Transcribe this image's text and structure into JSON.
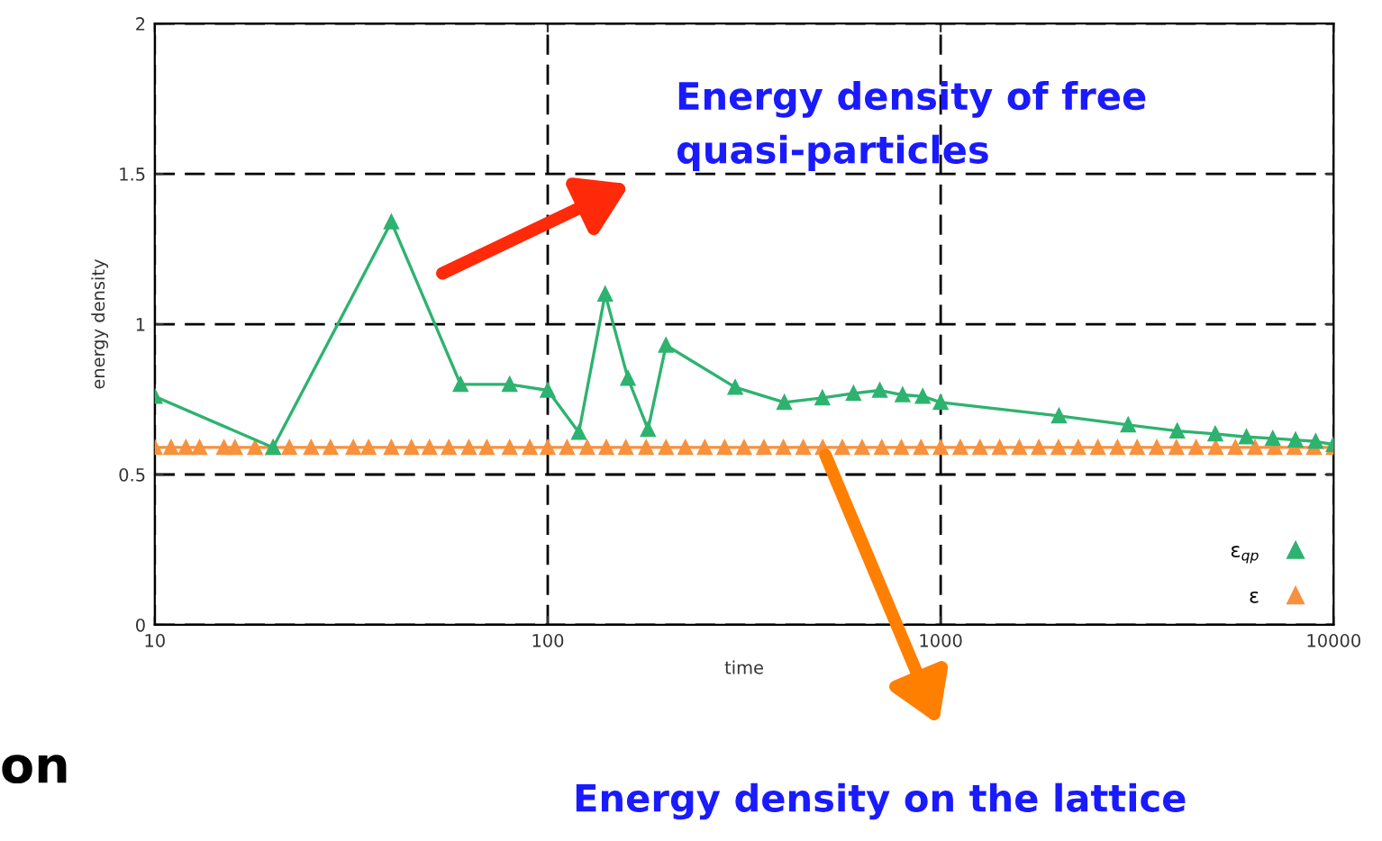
{
  "chart_data": {
    "type": "line",
    "xlabel": "time",
    "ylabel": "energy density",
    "log": "x",
    "grid": true,
    "legend": "bottom right",
    "marker": "triangle",
    "line_style": "solid",
    "xlim": [
      10,
      10000
    ],
    "xticks": [
      10,
      100,
      1000,
      10000
    ],
    "ylim": [
      0,
      2
    ],
    "yticks": [
      0,
      0.5,
      1,
      1.5,
      2
    ],
    "series": [
      {
        "name": "ε$_{qp}$",
        "color": "#2db36f",
        "x": [
          10,
          20,
          40,
          60,
          80,
          100,
          120,
          140,
          160,
          180,
          200,
          300,
          400,
          500,
          600,
          700,
          800,
          900,
          1000,
          2000,
          3000,
          4000,
          5000,
          6000,
          7000,
          8000,
          9000,
          10000
        ],
        "values": [
          0.76,
          0.59,
          1.34,
          0.8,
          0.8,
          0.78,
          0.64,
          1.1,
          0.82,
          0.65,
          0.93,
          0.79,
          0.74,
          0.755,
          0.77,
          0.78,
          0.765,
          0.76,
          0.74,
          0.695,
          0.665,
          0.645,
          0.635,
          0.625,
          0.62,
          0.615,
          0.61,
          0.6
        ]
      },
      {
        "name": "ε",
        "color": "#f7913d",
        "x": [
          10,
          11,
          12,
          13,
          15,
          16,
          18,
          20,
          22,
          25,
          28,
          32,
          35,
          40,
          45,
          50,
          56,
          63,
          70,
          80,
          90,
          100,
          112,
          126,
          141,
          158,
          178,
          200,
          224,
          251,
          282,
          316,
          355,
          398,
          447,
          501,
          562,
          631,
          708,
          794,
          891,
          1000,
          1122,
          1259,
          1413,
          1585,
          1778,
          1995,
          2239,
          2512,
          2818,
          3162,
          3548,
          3981,
          4467,
          5012,
          5623,
          6310,
          7079,
          7943,
          8913,
          10000
        ],
        "values": [
          0.59,
          0.59,
          0.59,
          0.59,
          0.59,
          0.59,
          0.59,
          0.59,
          0.59,
          0.59,
          0.59,
          0.59,
          0.59,
          0.59,
          0.59,
          0.59,
          0.59,
          0.59,
          0.59,
          0.59,
          0.59,
          0.59,
          0.59,
          0.59,
          0.59,
          0.59,
          0.59,
          0.59,
          0.59,
          0.59,
          0.59,
          0.59,
          0.59,
          0.59,
          0.59,
          0.59,
          0.59,
          0.59,
          0.59,
          0.59,
          0.59,
          0.59,
          0.59,
          0.59,
          0.59,
          0.59,
          0.59,
          0.59,
          0.59,
          0.59,
          0.59,
          0.59,
          0.59,
          0.59,
          0.59,
          0.59,
          0.59,
          0.59,
          0.59,
          0.59,
          0.59,
          0.59
        ]
      }
    ],
    "annotations": [
      "Energy density of free\nquasi-particles",
      "Energy density on the lattice",
      "on"
    ]
  }
}
